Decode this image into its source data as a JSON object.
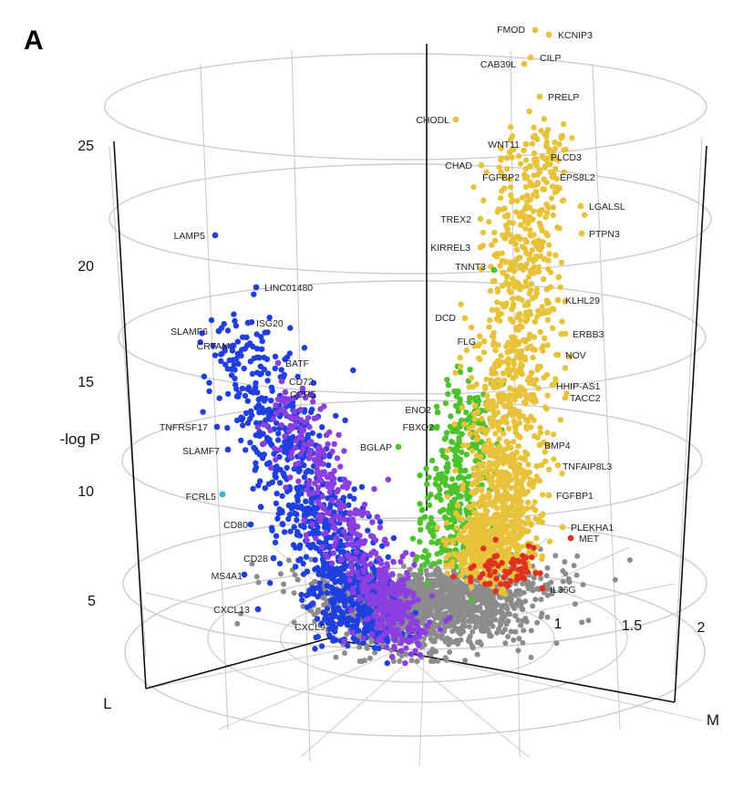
{
  "panel_label": "A",
  "colors": {
    "grid": "#cccccc",
    "axis": "#111111",
    "ns": "#8c8c8c",
    "blue": "#1f3fe0",
    "purple": "#8c3fe0",
    "green": "#4cc22c",
    "yellow": "#e8c23a",
    "red": "#e0301e",
    "cyan": "#33b2e0"
  },
  "chart_data": {
    "type": "scatter",
    "subtype": "3d-cylindrical-volcano",
    "title": "",
    "z_axis": {
      "label": "-log P",
      "ticks": [
        "5",
        "10",
        "15",
        "20",
        "25"
      ]
    },
    "radial_axis": {
      "ticks": [
        "1",
        "1.5",
        "2"
      ]
    },
    "axis_corner_labels": [
      "L",
      "M"
    ],
    "grid": true,
    "labeled_genes": [
      {
        "name": "FMOD",
        "group": "yellow",
        "neglogp": 28.3
      },
      {
        "name": "KCNIP3",
        "group": "yellow",
        "neglogp": 28.2
      },
      {
        "name": "CILP",
        "group": "yellow",
        "neglogp": 27.5
      },
      {
        "name": "CAB39L",
        "group": "yellow",
        "neglogp": 27.2
      },
      {
        "name": "PRELP",
        "group": "yellow",
        "neglogp": 25.8
      },
      {
        "name": "CHODL",
        "group": "yellow",
        "neglogp": 25.6
      },
      {
        "name": "WNT11",
        "group": "yellow",
        "neglogp": 24.9
      },
      {
        "name": "PLCD3",
        "group": "yellow",
        "neglogp": 24.4
      },
      {
        "name": "CHAD",
        "group": "yellow",
        "neglogp": 23.8
      },
      {
        "name": "FGFBP2",
        "group": "yellow",
        "neglogp": 23.5
      },
      {
        "name": "EPS8L2",
        "group": "yellow",
        "neglogp": 23.4
      },
      {
        "name": "LGALSL",
        "group": "yellow",
        "neglogp": 21.4
      },
      {
        "name": "TREX2",
        "group": "yellow",
        "neglogp": 21.2
      },
      {
        "name": "PTPN3",
        "group": "yellow",
        "neglogp": 20.7
      },
      {
        "name": "KIRREL3",
        "group": "yellow",
        "neglogp": 20.5
      },
      {
        "name": "TNNT3",
        "group": "green",
        "neglogp": 19.9
      },
      {
        "name": "KLHL29",
        "group": "yellow",
        "neglogp": 17.6
      },
      {
        "name": "DCD",
        "group": "yellow",
        "neglogp": 17.0
      },
      {
        "name": "ERBB3",
        "group": "yellow",
        "neglogp": 16.7
      },
      {
        "name": "FLG",
        "group": "yellow",
        "neglogp": 16.5
      },
      {
        "name": "NOV",
        "group": "yellow",
        "neglogp": 16.0
      },
      {
        "name": "HHIP-AS1",
        "group": "yellow",
        "neglogp": 14.9
      },
      {
        "name": "TACC2",
        "group": "yellow",
        "neglogp": 14.5
      },
      {
        "name": "ENO2",
        "group": "green",
        "neglogp": 14.0
      },
      {
        "name": "FBXO2",
        "group": "green",
        "neglogp": 13.2
      },
      {
        "name": "BGLAP",
        "group": "green",
        "neglogp": 12.5
      },
      {
        "name": "BMP4",
        "group": "yellow",
        "neglogp": 12.0
      },
      {
        "name": "TNFAIP8L3",
        "group": "yellow",
        "neglogp": 11.1
      },
      {
        "name": "FGFBP1",
        "group": "yellow",
        "neglogp": 10.2
      },
      {
        "name": "PLEKHA1",
        "group": "yellow",
        "neglogp": 8.2
      },
      {
        "name": "MET",
        "group": "red",
        "neglogp": 7.9
      },
      {
        "name": "IL36G",
        "group": "red",
        "neglogp": 5.2
      },
      {
        "name": "LAMP5",
        "group": "blue",
        "neglogp": 21.1
      },
      {
        "name": "LINC01480",
        "group": "blue",
        "neglogp": 19.1
      },
      {
        "name": "ISG20",
        "group": "blue",
        "neglogp": 17.6
      },
      {
        "name": "SLAMF6",
        "group": "blue",
        "neglogp": 17.3
      },
      {
        "name": "CRTAM",
        "group": "blue",
        "neglogp": 17.0
      },
      {
        "name": "BATF",
        "group": "purple",
        "neglogp": 15.8
      },
      {
        "name": "CD72",
        "group": "purple",
        "neglogp": 15.0
      },
      {
        "name": "CCR5",
        "group": "purple",
        "neglogp": 14.4
      },
      {
        "name": "TNFRSF17",
        "group": "blue",
        "neglogp": 13.0
      },
      {
        "name": "SLAMF7",
        "group": "blue",
        "neglogp": 11.8
      },
      {
        "name": "FCRL5",
        "group": "cyan",
        "neglogp": 10.1
      },
      {
        "name": "CD80",
        "group": "blue",
        "neglogp": 8.6
      },
      {
        "name": "CD28",
        "group": "blue",
        "neglogp": 7.3
      },
      {
        "name": "MS4A1",
        "group": "blue",
        "neglogp": 6.3
      },
      {
        "name": "CXCL13",
        "group": "blue",
        "neglogp": 5.0
      },
      {
        "name": "CXCL9",
        "group": "blue",
        "neglogp": 4.2
      }
    ]
  }
}
